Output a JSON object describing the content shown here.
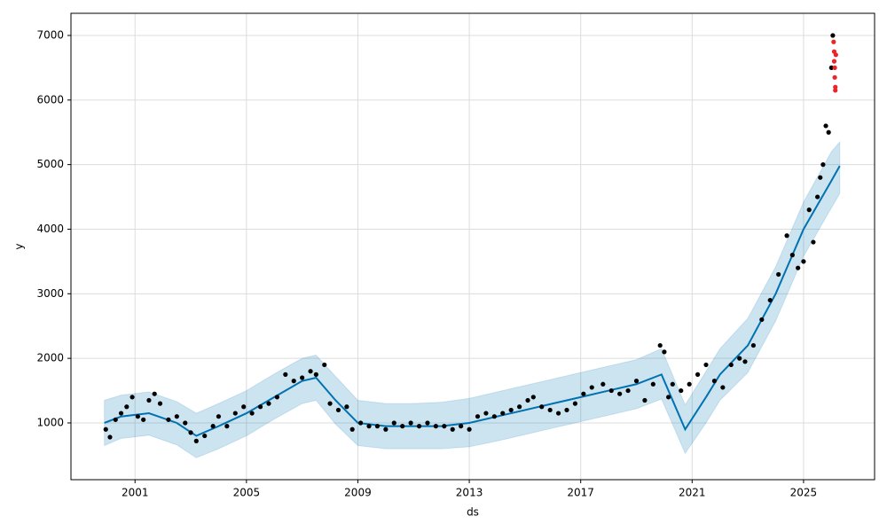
{
  "chart_data": {
    "type": "forecast",
    "xlabel": "ds",
    "ylabel": "y",
    "xlim": [
      1998.7,
      2027.55
    ],
    "ylim": [
      121,
      7343
    ],
    "xticks": [
      2001,
      2005,
      2009,
      2013,
      2017,
      2021,
      2025
    ],
    "yticks": [
      1000,
      2000,
      3000,
      4000,
      5000,
      6000,
      7000
    ],
    "grid": true,
    "series": [
      {
        "mode": "band",
        "color": "#0072B2",
        "x": [
          1999.9,
          2000.5,
          2001.5,
          2002.5,
          2003.2,
          2004,
          2005,
          2006,
          2007,
          2007.5,
          2008.2,
          2009,
          2010,
          2011,
          2012,
          2013,
          2014,
          2015,
          2016,
          2017,
          2018,
          2019,
          2019.9,
          2020.75,
          2021.5,
          2022,
          2023,
          2024,
          2025,
          2026,
          2026.3
        ],
        "values": [
          1000,
          1100,
          1150,
          1000,
          800,
          950,
          1150,
          1400,
          1650,
          1700,
          1350,
          1000,
          950,
          950,
          950,
          1000,
          1100,
          1200,
          1300,
          1400,
          1500,
          1600,
          1750,
          900,
          1400,
          1750,
          2200,
          3000,
          4000,
          4750,
          4980
        ],
        "upper": [
          1350,
          1430,
          1480,
          1330,
          1150,
          1300,
          1500,
          1760,
          2000,
          2050,
          1720,
          1350,
          1300,
          1300,
          1320,
          1380,
          1480,
          1580,
          1680,
          1780,
          1880,
          1980,
          2150,
          1280,
          1800,
          2150,
          2620,
          3420,
          4420,
          5200,
          5350
        ],
        "lower": [
          650,
          760,
          810,
          660,
          460,
          600,
          800,
          1060,
          1300,
          1350,
          980,
          650,
          600,
          600,
          600,
          630,
          720,
          820,
          920,
          1020,
          1120,
          1220,
          1370,
          530,
          1000,
          1350,
          1780,
          2580,
          3580,
          4330,
          4550
        ]
      },
      {
        "mode": "markers",
        "color": "#000000",
        "x": [
          1999.95,
          2000.1,
          2000.3,
          2000.5,
          2000.7,
          2000.9,
          2001.1,
          2001.3,
          2001.5,
          2001.7,
          2001.9,
          2002.2,
          2002.5,
          2002.8,
          2003.0,
          2003.2,
          2003.5,
          2003.8,
          2004.0,
          2004.3,
          2004.6,
          2004.9,
          2005.2,
          2005.5,
          2005.8,
          2006.1,
          2006.4,
          2006.7,
          2007.0,
          2007.3,
          2007.5,
          2007.8,
          2008.0,
          2008.3,
          2008.6,
          2008.8,
          2009.1,
          2009.4,
          2009.7,
          2010.0,
          2010.3,
          2010.6,
          2010.9,
          2011.2,
          2011.5,
          2011.8,
          2012.1,
          2012.4,
          2012.7,
          2013.0,
          2013.3,
          2013.6,
          2013.9,
          2014.2,
          2014.5,
          2014.8,
          2015.1,
          2015.3,
          2015.6,
          2015.9,
          2016.2,
          2016.5,
          2016.8,
          2017.1,
          2017.4,
          2017.8,
          2018.1,
          2018.4,
          2018.7,
          2019.0,
          2019.3,
          2019.6,
          2019.85,
          2020.0,
          2020.15,
          2020.3,
          2020.6,
          2020.9,
          2021.2,
          2021.5,
          2021.8,
          2022.1,
          2022.4,
          2022.7,
          2022.9,
          2023.2,
          2023.5,
          2023.8,
          2024.1,
          2024.4,
          2024.6,
          2024.8,
          2025.0,
          2025.2,
          2025.35,
          2025.5,
          2025.6,
          2025.7,
          2025.8,
          2025.9,
          2026.0,
          2026.05
        ],
        "values": [
          900,
          780,
          1050,
          1150,
          1250,
          1400,
          1100,
          1050,
          1350,
          1450,
          1300,
          1050,
          1100,
          1000,
          850,
          720,
          800,
          950,
          1100,
          950,
          1150,
          1250,
          1150,
          1250,
          1300,
          1400,
          1750,
          1650,
          1700,
          1800,
          1750,
          1900,
          1300,
          1200,
          1250,
          900,
          1000,
          950,
          950,
          900,
          1000,
          950,
          1000,
          950,
          1000,
          950,
          950,
          900,
          950,
          900,
          1100,
          1150,
          1100,
          1150,
          1200,
          1250,
          1350,
          1400,
          1250,
          1200,
          1150,
          1200,
          1300,
          1450,
          1550,
          1600,
          1500,
          1450,
          1500,
          1650,
          1350,
          1600,
          2200,
          2100,
          1400,
          1600,
          1500,
          1600,
          1750,
          1900,
          1650,
          1550,
          1900,
          2000,
          1950,
          2200,
          2600,
          2900,
          3300,
          3900,
          3600,
          3400,
          3500,
          4300,
          3800,
          4500,
          4800,
          5000,
          5600,
          5500,
          6500,
          7000
        ]
      },
      {
        "mode": "markers",
        "color": "#e8262a",
        "x": [
          2026.08,
          2026.1,
          2026.1,
          2026.12,
          2026.12,
          2026.14,
          2026.14,
          2026.16
        ],
        "values": [
          6900,
          6750,
          6600,
          6500,
          6350,
          6200,
          6150,
          6700
        ]
      }
    ]
  }
}
